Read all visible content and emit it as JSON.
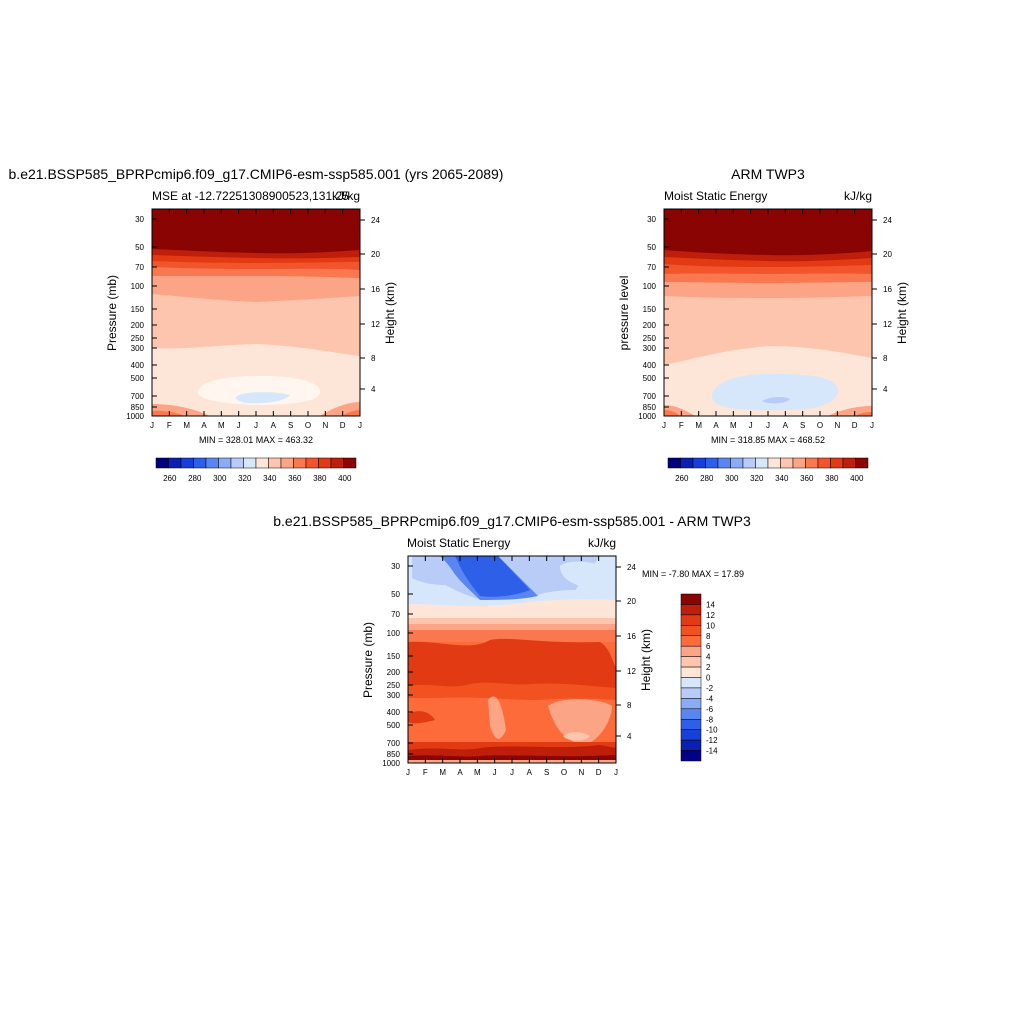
{
  "chart_data": [
    {
      "type": "heatmap",
      "title": "b.e21.BSSP585_BPRPcmip6.f09_g17.CMIP6-esm-ssp585.001 (yrs 2065-2089)",
      "left_label": "MSE at -12.72251308900523,131.25",
      "right_label": "kJ/kg",
      "ylabel": "Pressure (mb)",
      "ylabel_right": "Height (km)",
      "x_ticks": [
        "J",
        "F",
        "M",
        "A",
        "M",
        "J",
        "J",
        "A",
        "S",
        "O",
        "N",
        "D",
        "J"
      ],
      "y_ticks": [
        "30",
        "50",
        "70",
        "100",
        "150",
        "200",
        "250",
        "300",
        "400",
        "500",
        "700",
        "850",
        "1000"
      ],
      "y_ticks_right": [
        "24",
        "20",
        "16",
        "12",
        "8",
        "4"
      ],
      "stats": "MIN = 328.01 MAX = 463.32",
      "colorbar_labels": [
        "260",
        "280",
        "300",
        "320",
        "340",
        "360",
        "380",
        "400"
      ],
      "z_range": [
        328.01,
        463.32
      ]
    },
    {
      "type": "heatmap",
      "title": "ARM TWP3",
      "left_label": "Moist Static Energy",
      "right_label": "kJ/kg",
      "ylabel": "pressure level",
      "ylabel_right": "Height (km)",
      "x_ticks": [
        "J",
        "F",
        "M",
        "A",
        "M",
        "J",
        "J",
        "A",
        "S",
        "O",
        "N",
        "D",
        "J"
      ],
      "y_ticks": [
        "30",
        "50",
        "70",
        "100",
        "150",
        "200",
        "250",
        "300",
        "400",
        "500",
        "700",
        "850",
        "1000"
      ],
      "y_ticks_right": [
        "24",
        "20",
        "16",
        "12",
        "8",
        "4"
      ],
      "stats": "MIN = 318.85 MAX = 468.52",
      "colorbar_labels": [
        "260",
        "280",
        "300",
        "320",
        "340",
        "360",
        "380",
        "400"
      ],
      "z_range": [
        318.85,
        468.52
      ]
    },
    {
      "type": "heatmap",
      "title": "b.e21.BSSP585_BPRPcmip6.f09_g17.CMIP6-esm-ssp585.001 - ARM TWP3",
      "left_label": "Moist Static Energy",
      "right_label": "kJ/kg",
      "ylabel": "Pressure (mb)",
      "ylabel_right": "Height (km)",
      "x_ticks": [
        "J",
        "F",
        "M",
        "A",
        "M",
        "J",
        "J",
        "A",
        "S",
        "O",
        "N",
        "D",
        "J"
      ],
      "y_ticks": [
        "30",
        "50",
        "70",
        "100",
        "150",
        "200",
        "250",
        "300",
        "400",
        "500",
        "700",
        "850",
        "1000"
      ],
      "y_ticks_right": [
        "24",
        "20",
        "16",
        "12",
        "8",
        "4"
      ],
      "stats": "MIN =  -7.80 MAX =  17.89",
      "colorbar_labels": [
        "14",
        "12",
        "10",
        "8",
        "6",
        "4",
        "2",
        "0",
        "-2",
        "-4",
        "-6",
        "-8",
        "-10",
        "-12",
        "-14"
      ],
      "z_range": [
        -7.8,
        17.89
      ]
    }
  ],
  "colors": {
    "blue_red": [
      "#00007f",
      "#0a1fb4",
      "#1640d7",
      "#2e5fe9",
      "#5a86f2",
      "#8aabf5",
      "#b8ccf7",
      "#d7e7fb",
      "#fde5d8",
      "#fdc5ad",
      "#fca486",
      "#f9784f",
      "#f2542b",
      "#e23a12",
      "#bf1e0a",
      "#8a0404"
    ],
    "diff_scale": [
      "#8a0404",
      "#bf1e0a",
      "#e23a12",
      "#f25220",
      "#fd6b3a",
      "#fca486",
      "#fdc5ad",
      "#fde5d8",
      "#d7e7fb",
      "#b8ccf7",
      "#8aabf5",
      "#5a86f2",
      "#2e5fe9",
      "#1640d7",
      "#0a1fb4",
      "#00008b"
    ]
  }
}
